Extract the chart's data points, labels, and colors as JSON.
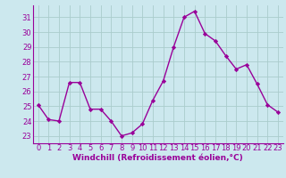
{
  "x": [
    0,
    1,
    2,
    3,
    4,
    5,
    6,
    7,
    8,
    9,
    10,
    11,
    12,
    13,
    14,
    15,
    16,
    17,
    18,
    19,
    20,
    21,
    22,
    23
  ],
  "y": [
    25.1,
    24.1,
    24.0,
    26.6,
    26.6,
    24.8,
    24.8,
    24.0,
    23.0,
    23.2,
    23.8,
    25.4,
    26.7,
    29.0,
    31.0,
    31.4,
    29.9,
    29.4,
    28.4,
    27.5,
    27.8,
    26.5,
    25.1,
    24.6
  ],
  "line_color": "#990099",
  "marker": "D",
  "marker_size": 2.2,
  "line_width": 1.0,
  "bg_color": "#cce8ee",
  "grid_color": "#aacccc",
  "xlabel": "Windchill (Refroidissement éolien,°C)",
  "xlabel_color": "#990099",
  "tick_color": "#990099",
  "ylabel_ticks": [
    23,
    24,
    25,
    26,
    27,
    28,
    29,
    30,
    31
  ],
  "ylim": [
    22.5,
    31.8
  ],
  "xlim": [
    -0.5,
    23.5
  ],
  "xtick_labels": [
    "0",
    "1",
    "2",
    "3",
    "4",
    "5",
    "6",
    "7",
    "8",
    "9",
    "10",
    "11",
    "12",
    "13",
    "14",
    "15",
    "16",
    "17",
    "18",
    "19",
    "20",
    "21",
    "22",
    "23"
  ],
  "font_size": 6.0,
  "xlabel_fontsize": 6.5
}
